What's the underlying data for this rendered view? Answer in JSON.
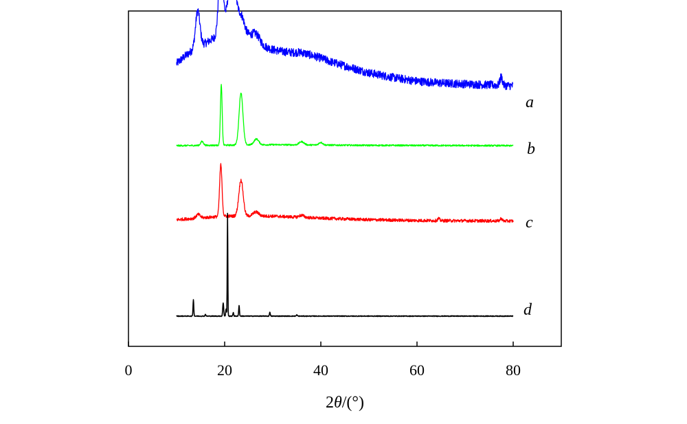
{
  "chart_data": {
    "type": "line",
    "title": "",
    "xlabel": {
      "prefix": "2",
      "symbol": "θ",
      "suffix": "/(°)"
    },
    "ylabel": "",
    "xlim": [
      0,
      90
    ],
    "x_ticks": [
      0,
      20,
      40,
      60,
      80
    ],
    "grid": false,
    "legend": "inline labels at right end of each trace",
    "y_units": "arbitrary intensity, traces vertically offset",
    "series": [
      {
        "name": "a",
        "color": "#0000ff",
        "baseline_x": [
          10,
          12,
          14,
          16,
          18,
          20,
          22,
          24,
          26,
          28,
          30,
          32,
          34,
          36,
          38,
          40,
          42,
          44,
          46,
          48,
          50,
          55,
          60,
          65,
          70,
          75,
          80
        ],
        "baseline_y": [
          5.0,
          5.9,
          6.7,
          7.2,
          7.8,
          8.4,
          8.8,
          8.4,
          7.6,
          6.9,
          6.5,
          6.3,
          6.2,
          6.2,
          5.9,
          5.6,
          5.2,
          4.9,
          4.6,
          4.3,
          4.0,
          3.5,
          3.1,
          2.9,
          2.8,
          2.7,
          2.6
        ],
        "peaks": [
          {
            "x": 14.4,
            "height": 3.9,
            "width": 0.45
          },
          {
            "x": 19.2,
            "height": 7.6,
            "width": 0.45
          },
          {
            "x": 21.5,
            "height": 6.0,
            "width": 0.8
          },
          {
            "x": 23.5,
            "height": 1.5,
            "width": 0.6
          },
          {
            "x": 26.5,
            "height": 0.8,
            "width": 0.8
          },
          {
            "x": 77.5,
            "height": 0.9,
            "width": 0.25
          }
        ],
        "noise": 0.45
      },
      {
        "name": "b",
        "color": "#00ff00",
        "baseline_x": [
          10,
          30,
          50,
          80
        ],
        "baseline_y": [
          0,
          0.15,
          0.05,
          0
        ],
        "peaks": [
          {
            "x": 19.3,
            "height": 9.2,
            "width": 0.18
          },
          {
            "x": 23.4,
            "height": 8.0,
            "width": 0.4
          },
          {
            "x": 15.3,
            "height": 0.6,
            "width": 0.3
          },
          {
            "x": 26.6,
            "height": 0.9,
            "width": 0.5
          },
          {
            "x": 36.0,
            "height": 0.5,
            "width": 0.5
          },
          {
            "x": 40.0,
            "height": 0.4,
            "width": 0.4
          }
        ],
        "noise": 0.12
      },
      {
        "name": "c",
        "color": "#ff0000",
        "baseline_x": [
          10,
          20,
          30,
          40,
          50,
          60,
          70,
          80
        ],
        "baseline_y": [
          0.3,
          1.0,
          1.0,
          0.6,
          0.3,
          0.15,
          0.1,
          0.05
        ],
        "peaks": [
          {
            "x": 19.2,
            "height": 10.0,
            "width": 0.25
          },
          {
            "x": 23.4,
            "height": 7.0,
            "width": 0.45
          },
          {
            "x": 14.5,
            "height": 0.7,
            "width": 0.4
          },
          {
            "x": 26.5,
            "height": 0.8,
            "width": 0.6
          },
          {
            "x": 36.0,
            "height": 0.4,
            "width": 0.5
          },
          {
            "x": 64.5,
            "height": 0.4,
            "width": 0.2
          },
          {
            "x": 77.5,
            "height": 0.5,
            "width": 0.2
          }
        ],
        "noise": 0.3
      },
      {
        "name": "d",
        "color": "#000000",
        "baseline_x": [
          10,
          80
        ],
        "baseline_y": [
          0,
          0
        ],
        "peaks": [
          {
            "x": 13.5,
            "height": 2.7,
            "width": 0.08
          },
          {
            "x": 16.0,
            "height": 0.3,
            "width": 0.08
          },
          {
            "x": 19.7,
            "height": 2.2,
            "width": 0.1
          },
          {
            "x": 20.3,
            "height": 1.2,
            "width": 0.08
          },
          {
            "x": 20.6,
            "height": 17.0,
            "width": 0.06
          },
          {
            "x": 21.8,
            "height": 0.6,
            "width": 0.08
          },
          {
            "x": 23.0,
            "height": 1.8,
            "width": 0.08
          },
          {
            "x": 29.4,
            "height": 0.7,
            "width": 0.08
          },
          {
            "x": 35.0,
            "height": 0.2,
            "width": 0.1
          }
        ],
        "noise": 0.06
      }
    ]
  }
}
